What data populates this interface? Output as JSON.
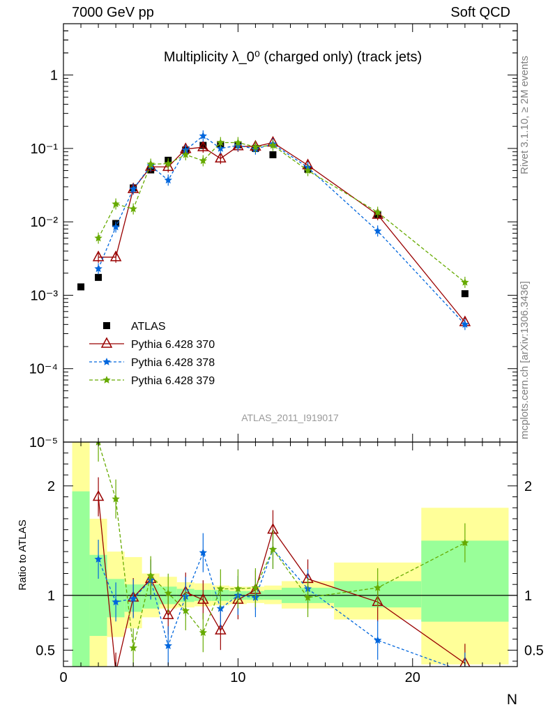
{
  "header": {
    "left": "7000 GeV pp",
    "right": "Soft QCD",
    "side_top": "Rivet 3.1.10, ≥ 2M events",
    "side_bottom": "mcplots.cern.ch [arXiv:1306.3436]"
  },
  "chart_data": [
    {
      "type": "scatter",
      "title": "Multiplicity λ_0⁰ (charged only) (track jets)",
      "watermark": "ATLAS_2011_I919017",
      "xlabel": "",
      "ylabel": "",
      "log_y": true,
      "xlim": [
        0,
        26
      ],
      "ylim": [
        1e-05,
        5
      ],
      "y_tick_labels": [
        "10⁻⁵",
        "10⁻⁴",
        "10⁻³",
        "10⁻²",
        "10⁻¹",
        "1"
      ],
      "legend_position": "lower-left",
      "series": [
        {
          "name": "ATLAS",
          "color": "#000000",
          "marker": "square",
          "x": [
            1,
            2,
            3,
            4,
            5,
            6,
            7,
            8,
            9,
            10,
            11,
            12,
            14,
            18,
            23
          ],
          "y": [
            0.0013,
            0.00175,
            0.0095,
            0.029,
            0.051,
            0.069,
            0.095,
            0.11,
            0.113,
            0.112,
            0.1,
            0.082,
            0.052,
            0.0125,
            0.00105
          ]
        },
        {
          "name": "Pythia 6.428 370",
          "color": "#990000",
          "marker": "triangle",
          "x": [
            2,
            3,
            4,
            5,
            6,
            7,
            8,
            9,
            10,
            11,
            12,
            14,
            18,
            23
          ],
          "y": [
            0.0033,
            0.0033,
            0.028,
            0.056,
            0.056,
            0.098,
            0.104,
            0.073,
            0.107,
            0.106,
            0.12,
            0.059,
            0.0125,
            0.00043
          ]
        },
        {
          "name": "Pythia 6.428 378",
          "color": "#0066dd",
          "marker": "star",
          "x": [
            2,
            3,
            4,
            5,
            6,
            7,
            8,
            9,
            10,
            11,
            12,
            14,
            18,
            23
          ],
          "y": [
            0.0023,
            0.0085,
            0.028,
            0.058,
            0.037,
            0.095,
            0.148,
            0.1,
            0.11,
            0.098,
            0.115,
            0.055,
            0.0075,
            0.0004
          ]
        },
        {
          "name": "Pythia 6.428 379",
          "color": "#66aa00",
          "marker": "star",
          "x": [
            2,
            3,
            4,
            5,
            6,
            7,
            8,
            9,
            10,
            11,
            12,
            14,
            18,
            23
          ],
          "y": [
            0.006,
            0.0175,
            0.015,
            0.061,
            0.062,
            0.082,
            0.068,
            0.12,
            0.12,
            0.105,
            0.11,
            0.05,
            0.0135,
            0.0015
          ]
        }
      ]
    },
    {
      "type": "scatter",
      "ylabel": "Ratio to ATLAS",
      "xlabel": "N",
      "xlim": [
        0,
        26
      ],
      "ylim": [
        0.35,
        2.4
      ],
      "x_ticks": [
        0,
        10,
        20
      ],
      "y_ticks": [
        0.5,
        1,
        2
      ],
      "reference": 1,
      "bands": [
        {
          "x0": 0.5,
          "x1": 1.5,
          "stat_lo": 0.35,
          "stat_hi": 1.95,
          "tot_lo": 0.35,
          "tot_hi": 2.4
        },
        {
          "x0": 1.5,
          "x1": 2.5,
          "stat_lo": 0.63,
          "stat_hi": 1.37,
          "tot_lo": 0.35,
          "tot_hi": 1.7
        },
        {
          "x0": 2.5,
          "x1": 3.5,
          "stat_lo": 0.8,
          "stat_hi": 1.15,
          "tot_lo": 0.62,
          "tot_hi": 1.4
        },
        {
          "x0": 3.5,
          "x1": 4.5,
          "stat_lo": 0.85,
          "stat_hi": 1.1,
          "tot_lo": 0.7,
          "tot_hi": 1.35
        },
        {
          "x0": 4.5,
          "x1": 5.5,
          "stat_lo": 0.88,
          "stat_hi": 1.1,
          "tot_lo": 0.8,
          "tot_hi": 1.2
        },
        {
          "x0": 5.5,
          "x1": 6.5,
          "stat_lo": 0.92,
          "stat_hi": 1.08,
          "tot_lo": 0.88,
          "tot_hi": 1.17
        },
        {
          "x0": 6.5,
          "x1": 7.5,
          "stat_lo": 0.94,
          "stat_hi": 1.06,
          "tot_lo": 0.89,
          "tot_hi": 1.12
        },
        {
          "x0": 7.5,
          "x1": 8.5,
          "stat_lo": 0.95,
          "stat_hi": 1.05,
          "tot_lo": 0.9,
          "tot_hi": 1.11
        },
        {
          "x0": 8.5,
          "x1": 9.5,
          "stat_lo": 0.95,
          "stat_hi": 1.05,
          "tot_lo": 0.91,
          "tot_hi": 1.09
        },
        {
          "x0": 9.5,
          "x1": 10.5,
          "stat_lo": 0.96,
          "stat_hi": 1.04,
          "tot_lo": 0.92,
          "tot_hi": 1.08
        },
        {
          "x0": 10.5,
          "x1": 11.5,
          "stat_lo": 0.96,
          "stat_hi": 1.04,
          "tot_lo": 0.93,
          "tot_hi": 1.08
        },
        {
          "x0": 11.5,
          "x1": 12.5,
          "stat_lo": 0.96,
          "stat_hi": 1.05,
          "tot_lo": 0.92,
          "tot_hi": 1.09
        },
        {
          "x0": 12.5,
          "x1": 15.5,
          "stat_lo": 0.93,
          "stat_hi": 1.07,
          "tot_lo": 0.88,
          "tot_hi": 1.13
        },
        {
          "x0": 15.5,
          "x1": 20.5,
          "stat_lo": 0.89,
          "stat_hi": 1.13,
          "tot_lo": 0.78,
          "tot_hi": 1.3
        },
        {
          "x0": 20.5,
          "x1": 25.5,
          "stat_lo": 0.76,
          "stat_hi": 1.5,
          "tot_lo": 0.37,
          "tot_hi": 1.8
        }
      ],
      "series": [
        {
          "name": "Pythia 6.428 370",
          "color": "#990000",
          "marker": "triangle",
          "x": [
            2,
            3,
            4,
            5,
            6,
            7,
            8,
            9,
            10,
            11,
            12,
            14,
            18,
            23
          ],
          "y": [
            1.9,
            0.3,
            0.98,
            1.15,
            0.82,
            1.03,
            0.96,
            0.68,
            0.96,
            1.05,
            1.6,
            1.15,
            0.94,
            0.38
          ]
        },
        {
          "name": "Pythia 6.428 378",
          "color": "#0066dd",
          "marker": "star",
          "x": [
            2,
            3,
            4,
            5,
            6,
            7,
            8,
            9,
            10,
            11,
            12,
            14,
            18,
            23
          ],
          "y": [
            1.33,
            0.94,
            0.97,
            1.14,
            0.54,
            0.99,
            1.39,
            0.88,
            1.0,
            0.98,
            1.42,
            1.06,
            0.59,
            0.3
          ]
        },
        {
          "name": "Pythia 6.428 379",
          "color": "#66aa00",
          "marker": "star",
          "x": [
            2,
            3,
            4,
            5,
            6,
            7,
            8,
            9,
            10,
            11,
            12,
            14,
            18,
            23
          ],
          "y": [
            2.4,
            1.88,
            0.52,
            1.18,
            1.02,
            0.86,
            0.66,
            1.06,
            1.06,
            1.07,
            1.42,
            0.98,
            1.07,
            1.48
          ]
        }
      ]
    }
  ]
}
